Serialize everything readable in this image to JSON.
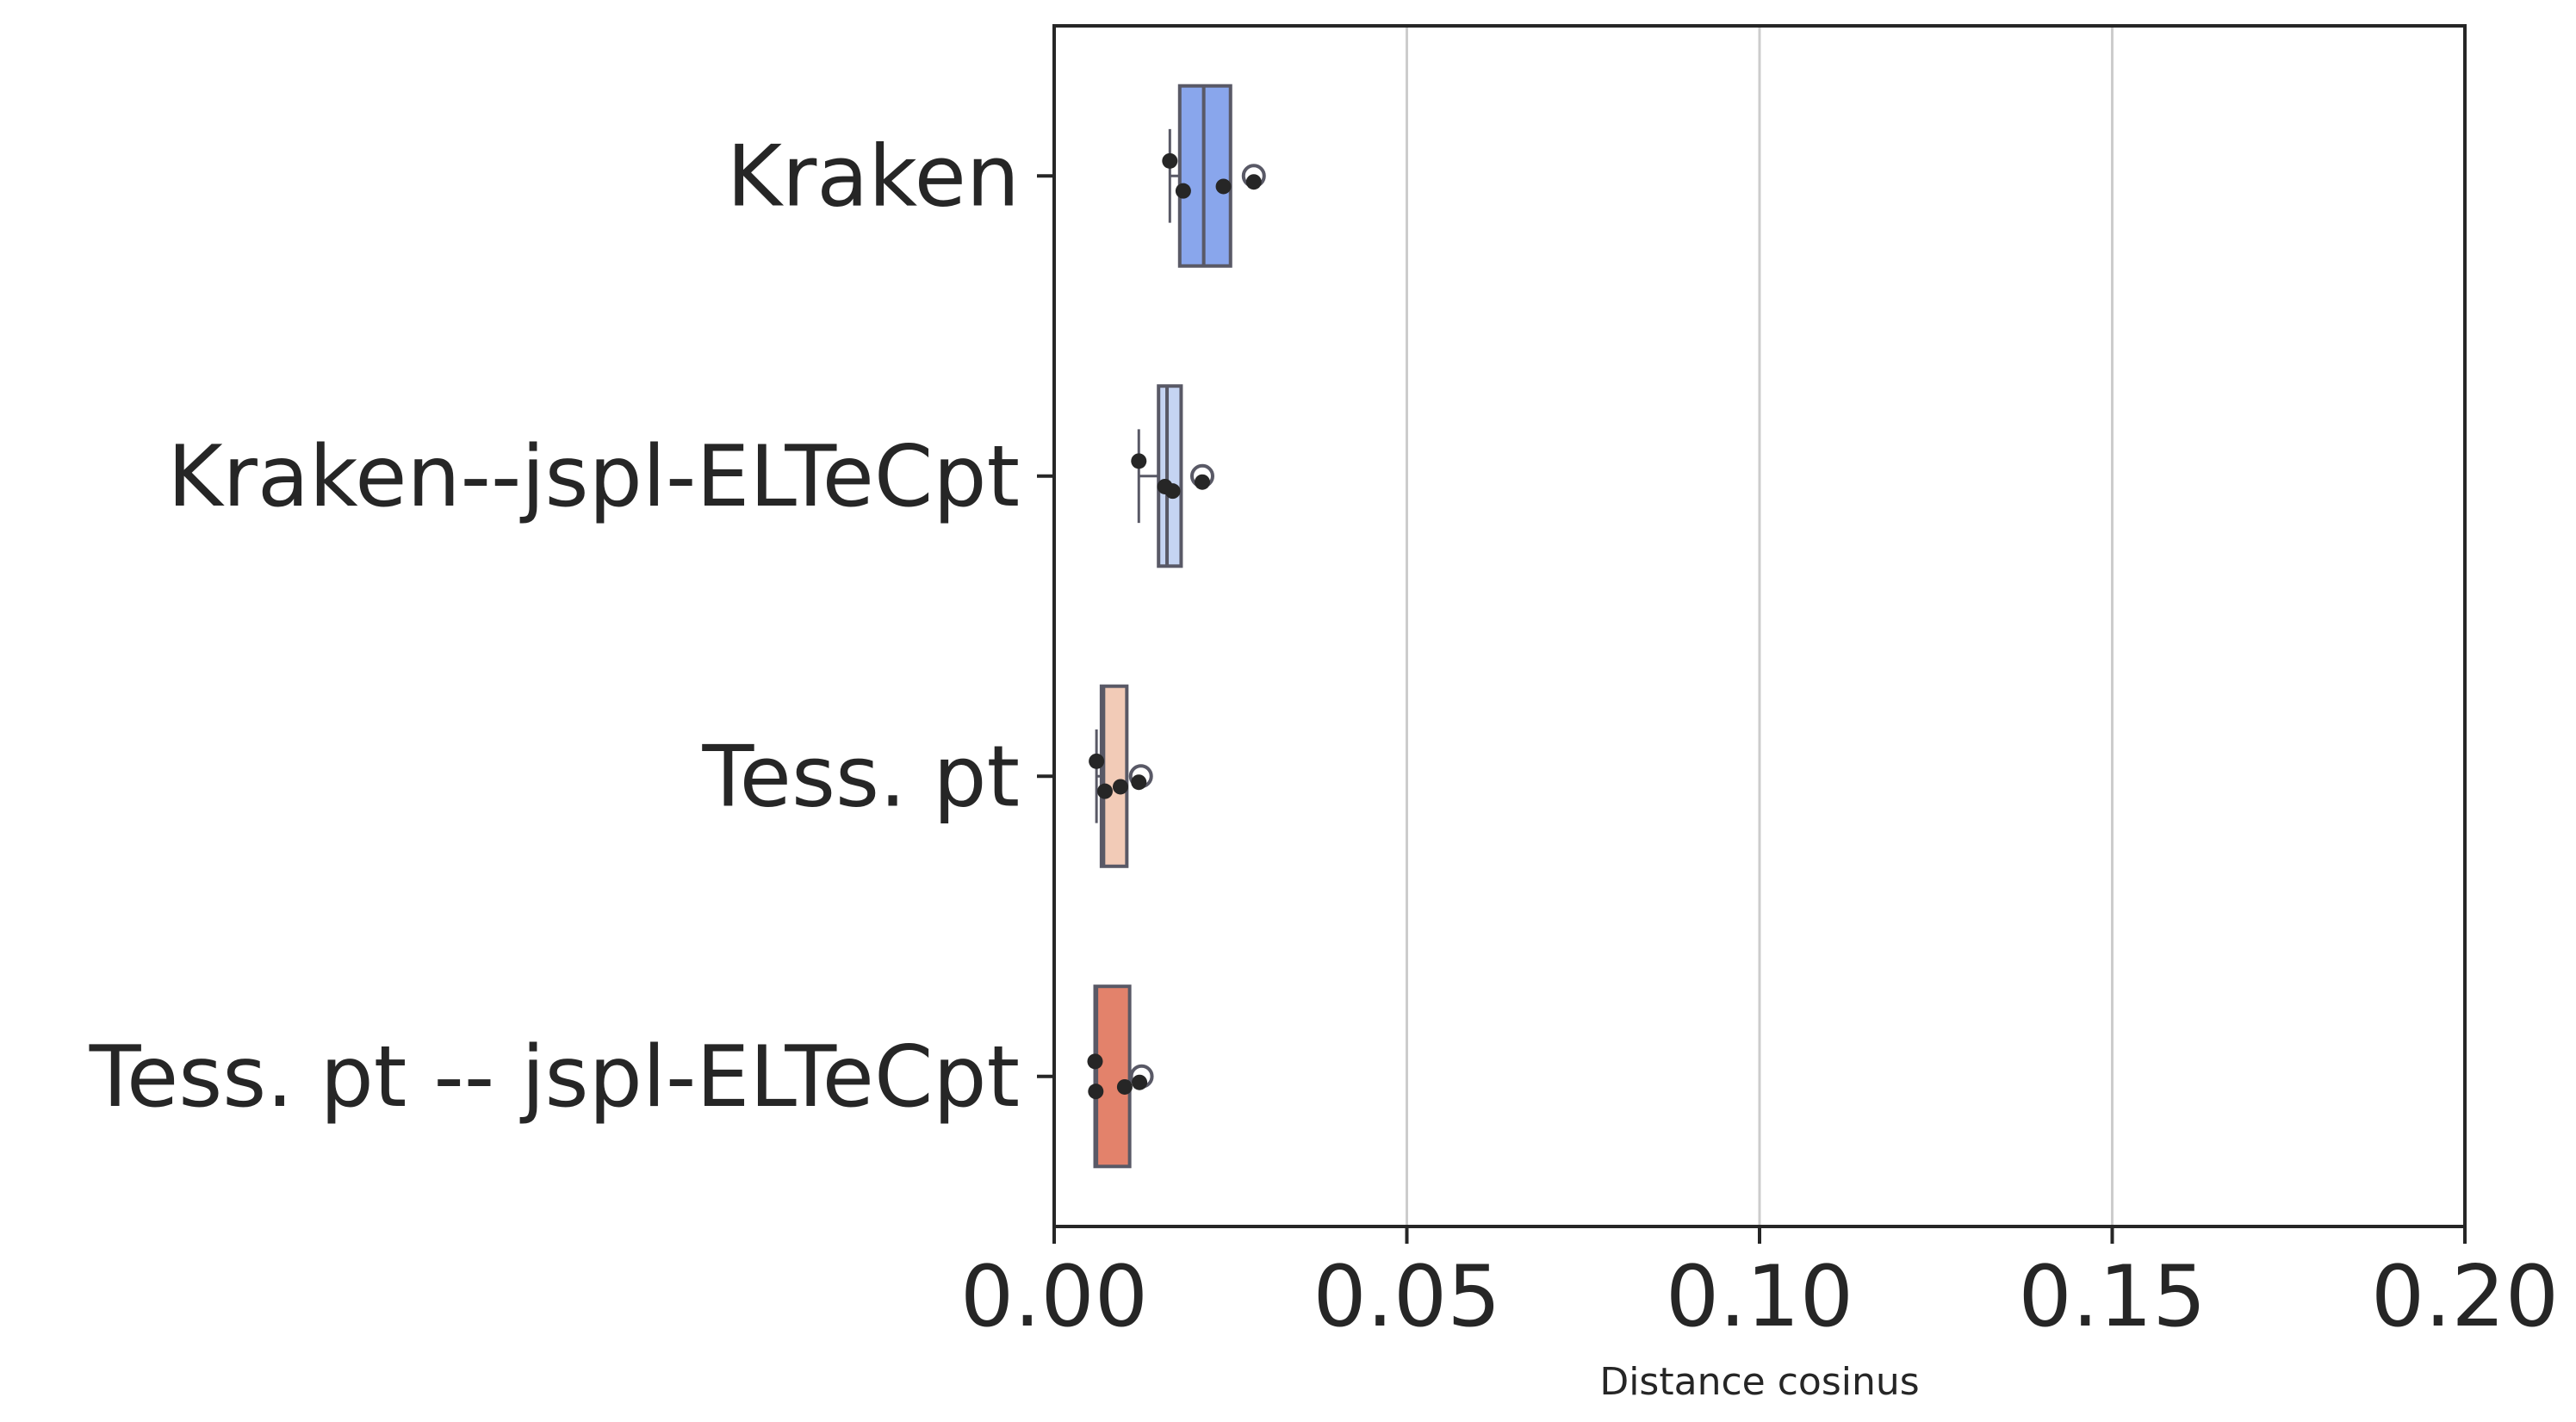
{
  "chart_data": {
    "type": "boxplot",
    "orientation": "horizontal",
    "title": "",
    "xlabel": "Distance cosinus",
    "ylabel": "",
    "xlim": [
      0,
      0.2
    ],
    "xticks": [
      0,
      0.05,
      0.1,
      0.15,
      0.2
    ],
    "xtick_labels": [
      "0.00",
      "0.05",
      "0.10",
      "0.15",
      "0.20"
    ],
    "grid": "vertical",
    "categories": [
      {
        "label": "Kraken",
        "color": "#89a6ec",
        "whisker_low": 0.0164,
        "q1": 0.0178,
        "median": 0.0212,
        "q3": 0.025,
        "whisker_high": 0.025,
        "outliers": [
          0.0283
        ],
        "points": [
          0.0164,
          0.0183,
          0.024,
          0.0283
        ]
      },
      {
        "label": "Kraken--jspl-ELTeCpt",
        "color": "#c5d4f2",
        "whisker_low": 0.012,
        "q1": 0.0148,
        "median": 0.016,
        "q3": 0.018,
        "whisker_high": 0.018,
        "outliers": [
          0.021
        ],
        "points": [
          0.012,
          0.0168,
          0.0157,
          0.021
        ]
      },
      {
        "label": "Tess. pt",
        "color": "#f2cbb7",
        "whisker_low": 0.006,
        "q1": 0.0067,
        "median": 0.007,
        "q3": 0.0103,
        "whisker_high": 0.0103,
        "outliers": [
          0.0123
        ],
        "points": [
          0.006,
          0.0072,
          0.0094,
          0.012
        ]
      },
      {
        "label": "Tess. pt -- jspl-ELTeCpt",
        "color": "#e3826b",
        "whisker_low": 0.0058,
        "q1": 0.0058,
        "median": 0.006,
        "q3": 0.0107,
        "whisker_high": 0.0107,
        "outliers": [
          0.0124
        ],
        "points": [
          0.0058,
          0.0059,
          0.01,
          0.0121
        ]
      }
    ],
    "colors": {
      "axis": "#262626",
      "grid": "#cccccc",
      "box_edge": "#595966",
      "point": "#262626"
    }
  }
}
